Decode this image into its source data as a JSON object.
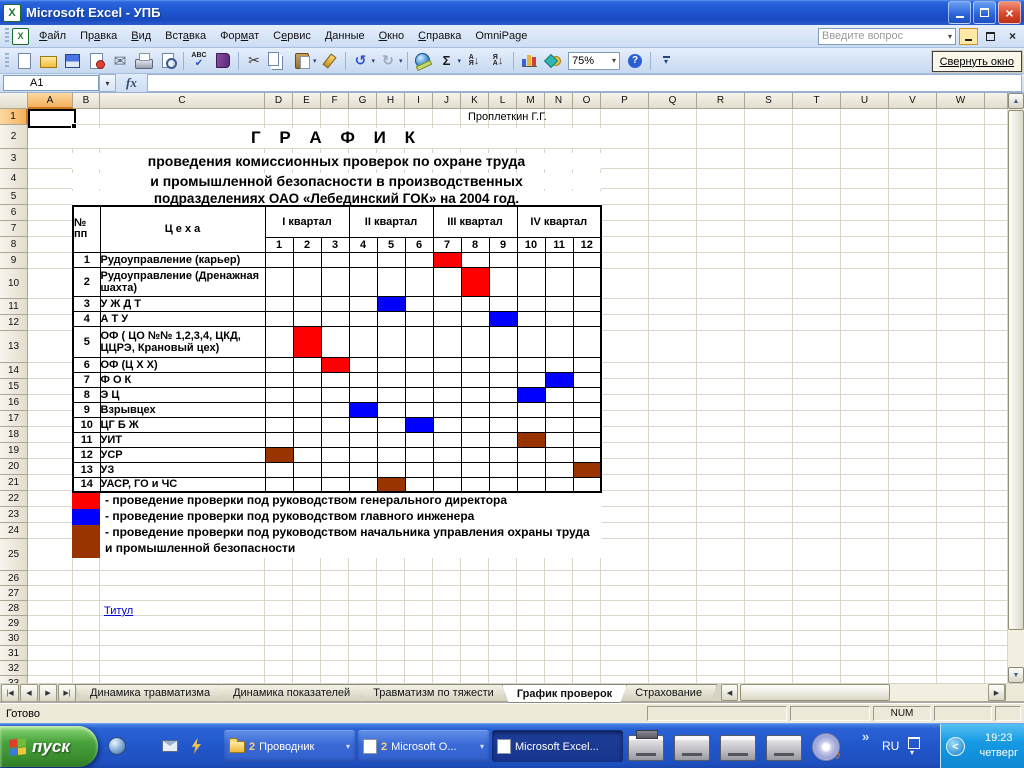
{
  "window": {
    "title": "Microsoft Excel - УПБ"
  },
  "menu": {
    "items": [
      {
        "label": "Файл",
        "u": 0
      },
      {
        "label": "Правка",
        "u": 2
      },
      {
        "label": "Вид",
        "u": 0
      },
      {
        "label": "Вставка",
        "u": 3
      },
      {
        "label": "Формат",
        "u": 3
      },
      {
        "label": "Сервис",
        "u": 1
      },
      {
        "label": "Данные",
        "u": 0
      },
      {
        "label": "Окно",
        "u": 0
      },
      {
        "label": "Справка",
        "u": 0
      },
      {
        "label": "OmniPage",
        "u": -1
      }
    ],
    "question_box": {
      "placeholder": "Введите вопрос"
    }
  },
  "toolbar": {
    "zoom_value": "75%",
    "collapse_window_label": "Свернуть окно",
    "icons": [
      {
        "n": "new-document-icon"
      },
      {
        "n": "open-icon"
      },
      {
        "n": "save-icon"
      },
      {
        "n": "permission-icon"
      },
      {
        "n": "email-icon"
      },
      {
        "n": "print-icon"
      },
      {
        "n": "print-preview-icon"
      },
      {
        "sep": true
      },
      {
        "n": "spelling-icon"
      },
      {
        "n": "research-icon"
      },
      {
        "sep": true
      },
      {
        "n": "cut-icon"
      },
      {
        "n": "copy-icon"
      },
      {
        "n": "paste-icon",
        "dd": true
      },
      {
        "n": "format-painter-icon"
      },
      {
        "sep": true
      },
      {
        "n": "undo-icon",
        "dd": true
      },
      {
        "n": "redo-icon",
        "dd": true
      },
      {
        "sep": true
      },
      {
        "n": "hyperlink-icon"
      },
      {
        "n": "autosum-icon",
        "dd": true
      },
      {
        "n": "sort-ascending-icon"
      },
      {
        "n": "sort-descending-icon"
      },
      {
        "sep": true
      },
      {
        "n": "chart-wizard-icon"
      },
      {
        "n": "drawing-icon"
      },
      {
        "n": "zoom-select",
        "zoom": true
      },
      {
        "n": "help-icon"
      },
      {
        "sep": true
      },
      {
        "n": "toolbar-options-icon"
      }
    ]
  },
  "formula_bar": {
    "name_box_value": "A1",
    "fx_label": "fx"
  },
  "sheet": {
    "selected_cell": "A1",
    "author_note": "Проплеткин Г.Г.",
    "col_headers": [
      "A",
      "B",
      "C",
      "D",
      "E",
      "F",
      "G",
      "H",
      "I",
      "J",
      "K",
      "L",
      "M",
      "N",
      "O",
      "P",
      "Q",
      "R",
      "S",
      "T",
      "U",
      "V",
      "W"
    ],
    "visible_rows": 33
  },
  "document": {
    "heading": "Г Р А Ф И К",
    "subtitle1": "проведения комиссионных проверок по охране труда",
    "subtitle2": "и промышленной безопасности в производственных",
    "subtitle3": "подразделениях ОАО «Лебединский ГОК» на 2004 год.",
    "link_label": "Титул"
  },
  "schedule": {
    "num_header": "№\nпп",
    "dept_header": "Ц е х а",
    "quarters": [
      "I квартал",
      "II квартал",
      "III квартал",
      "IV квартал"
    ],
    "months": [
      "1",
      "2",
      "3",
      "4",
      "5",
      "6",
      "7",
      "8",
      "9",
      "10",
      "11",
      "12"
    ],
    "colors": {
      "red": "#ff0000",
      "blue": "#0000ff",
      "brown": "#993300"
    },
    "rows": [
      {
        "num": "1",
        "name": "Рудоуправление (карьер)",
        "month": 7,
        "color": "red"
      },
      {
        "num": "2",
        "name": "Рудоуправление (Дренажная шахта)",
        "month": 8,
        "color": "red"
      },
      {
        "num": "3",
        "name": "У Ж Д Т",
        "month": 5,
        "color": "blue"
      },
      {
        "num": "4",
        "name": "А Т У",
        "month": 9,
        "color": "blue"
      },
      {
        "num": "5",
        "name": "ОФ ( ЦО №№ 1,2,3,4, ЦКД, ЦЦРЭ, Крановый цех)",
        "month": 2,
        "color": "red"
      },
      {
        "num": "6",
        "name": "ОФ (Ц Х Х)",
        "month": 3,
        "color": "red"
      },
      {
        "num": "7",
        "name": "Ф О К",
        "month": 11,
        "color": "blue"
      },
      {
        "num": "8",
        "name": "Э Ц",
        "month": 10,
        "color": "blue"
      },
      {
        "num": "9",
        "name": "Взрывцех",
        "month": 4,
        "color": "blue"
      },
      {
        "num": "10",
        "name": "ЦГ Б Ж",
        "month": 6,
        "color": "blue"
      },
      {
        "num": "11",
        "name": "УИТ",
        "month": 10,
        "color": "brown"
      },
      {
        "num": "12",
        "name": "УСР",
        "month": 1,
        "color": "brown"
      },
      {
        "num": "13",
        "name": "УЗ",
        "month": 12,
        "color": "brown"
      },
      {
        "num": "14",
        "name": "УАСР, ГО и ЧС",
        "month": 5,
        "color": "brown"
      }
    ],
    "legend": [
      {
        "color": "red",
        "text": "- проведение проверки под руководством генерального директора"
      },
      {
        "color": "blue",
        "text": "- проведение проверки под руководством главного инженера"
      },
      {
        "color": "brown",
        "text": "- проведение проверки под руководством начальника управления  охраны труда и промышленной безопасности"
      }
    ]
  },
  "sheet_tabs": {
    "items": [
      "Динамика травматизма",
      "Динамика показателей",
      "Травматизм по тяжести",
      "График проверок",
      "Страхование"
    ],
    "active": "График проверок"
  },
  "status_bar": {
    "mode": "Готово",
    "num_lock": "NUM"
  },
  "taskbar": {
    "start_label": "пуск",
    "quick_launch": [
      "sphere-icon",
      "internet-explorer-icon",
      "outlook-icon",
      "winamp-icon"
    ],
    "buttons": [
      {
        "count": "2",
        "label": "Проводник",
        "icon": "folder-icon",
        "dropdown": true
      },
      {
        "count": "2",
        "label": "Microsoft O...",
        "icon": "word-icon",
        "dropdown": true
      },
      {
        "count": "",
        "label": "Microsoft Excel...",
        "icon": "excel-icon",
        "active": true
      }
    ],
    "tray_icons": [
      "removable-drive-icon",
      "hard-drive-icon",
      "hard-drive-icon",
      "hard-drive-icon",
      "cd-audio-icon"
    ],
    "tray": {
      "chevron": "»",
      "language": "RU",
      "time": "19:23",
      "day": "четверг"
    }
  }
}
